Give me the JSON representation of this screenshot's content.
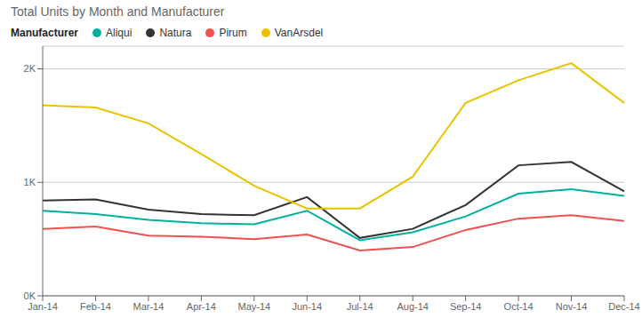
{
  "chart_data": {
    "type": "line",
    "title": "Total Units by Month and Manufacturer",
    "legend_title": "Manufacturer",
    "legend": "top",
    "categories": [
      "Jan-14",
      "Feb-14",
      "Mar-14",
      "Apr-14",
      "May-14",
      "Jun-14",
      "Jul-14",
      "Aug-14",
      "Sep-14",
      "Oct-14",
      "Nov-14",
      "Dec-14"
    ],
    "series": [
      {
        "name": "Aliqui",
        "color": "#00B0A0",
        "values": [
          750,
          720,
          670,
          640,
          630,
          750,
          490,
          560,
          700,
          900,
          940,
          880
        ]
      },
      {
        "name": "Natura",
        "color": "#333333",
        "values": [
          840,
          850,
          760,
          720,
          710,
          870,
          510,
          590,
          800,
          1150,
          1180,
          920
        ]
      },
      {
        "name": "Pirum",
        "color": "#F05050",
        "values": [
          590,
          610,
          530,
          520,
          500,
          540,
          400,
          430,
          580,
          680,
          710,
          660
        ]
      },
      {
        "name": "VanArsdel",
        "color": "#E8C400",
        "values": [
          1680,
          1660,
          1520,
          1250,
          970,
          770,
          770,
          1050,
          1700,
          1900,
          2050,
          1700
        ]
      }
    ],
    "ylim": [
      0,
      2200
    ],
    "yticks": [
      {
        "value": 0,
        "label": "0K"
      },
      {
        "value": 1000,
        "label": "1K"
      },
      {
        "value": 2000,
        "label": "2K"
      }
    ],
    "grid": true
  }
}
